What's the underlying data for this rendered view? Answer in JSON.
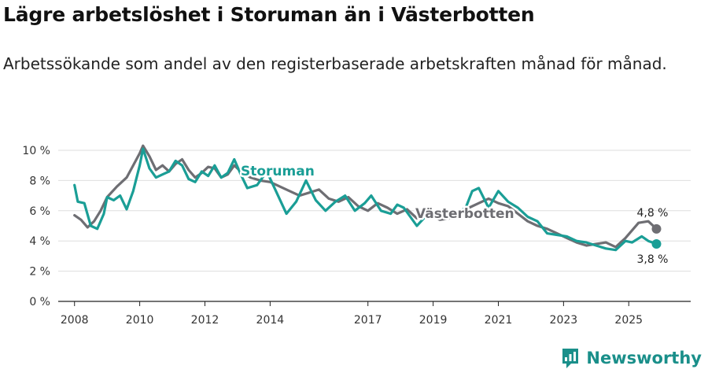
{
  "header": {
    "title": "Lägre arbetslöshet i Storuman än i Västerbotten",
    "subtitle": "Arbetssökande som andel av den registerbaserade arbetskraften månad för månad."
  },
  "brand": {
    "name": "Newsworthy",
    "color": "#1a8f8a"
  },
  "chart_data": {
    "type": "line",
    "title": "Lägre arbetslöshet i Storuman än i Västerbotten",
    "xlabel": "",
    "ylabel": "",
    "xlim": [
      2007.5,
      2026.9
    ],
    "ylim": [
      0,
      10
    ],
    "yticks": [
      0,
      2,
      4,
      6,
      8,
      10
    ],
    "ytick_labels": [
      "0 %",
      "2 %",
      "4 %",
      "6 %",
      "8 %",
      "10 %"
    ],
    "xticks": [
      2008,
      2010,
      2012,
      2014,
      2017,
      2019,
      2021,
      2023,
      2025
    ],
    "xtick_labels": [
      "2008",
      "2010",
      "2012",
      "2014",
      "2017",
      "2019",
      "2021",
      "2023",
      "2025"
    ],
    "grid": true,
    "series": [
      {
        "name": "Västerbotten",
        "color": "#6e6e73",
        "points": [
          [
            2008.0,
            5.7
          ],
          [
            2008.2,
            5.4
          ],
          [
            2008.4,
            4.9
          ],
          [
            2008.6,
            5.3
          ],
          [
            2008.8,
            6.0
          ],
          [
            2009.0,
            6.9
          ],
          [
            2009.3,
            7.6
          ],
          [
            2009.6,
            8.2
          ],
          [
            2009.8,
            9.0
          ],
          [
            2010.0,
            9.8
          ],
          [
            2010.1,
            10.3
          ],
          [
            2010.3,
            9.6
          ],
          [
            2010.5,
            8.7
          ],
          [
            2010.7,
            9.0
          ],
          [
            2010.9,
            8.6
          ],
          [
            2011.1,
            9.1
          ],
          [
            2011.3,
            9.4
          ],
          [
            2011.5,
            8.7
          ],
          [
            2011.7,
            8.2
          ],
          [
            2011.9,
            8.5
          ],
          [
            2012.1,
            8.9
          ],
          [
            2012.3,
            8.8
          ],
          [
            2012.5,
            8.2
          ],
          [
            2012.7,
            8.4
          ],
          [
            2012.9,
            9.0
          ],
          [
            2013.1,
            8.6
          ],
          [
            2013.4,
            8.2
          ],
          [
            2013.7,
            8.0
          ],
          [
            2014.0,
            7.9
          ],
          [
            2014.3,
            7.6
          ],
          [
            2014.6,
            7.3
          ],
          [
            2014.9,
            7.0
          ],
          [
            2015.2,
            7.2
          ],
          [
            2015.5,
            7.4
          ],
          [
            2015.8,
            6.8
          ],
          [
            2016.1,
            6.6
          ],
          [
            2016.4,
            6.9
          ],
          [
            2016.7,
            6.3
          ],
          [
            2017.0,
            6.0
          ],
          [
            2017.3,
            6.5
          ],
          [
            2017.6,
            6.2
          ],
          [
            2017.9,
            5.8
          ],
          [
            2018.2,
            6.1
          ],
          [
            2018.5,
            5.5
          ],
          [
            2018.8,
            5.9
          ],
          [
            2019.2,
            5.4
          ],
          [
            2019.5,
            5.5
          ],
          [
            2019.8,
            5.9
          ],
          [
            2020.1,
            6.2
          ],
          [
            2020.4,
            6.5
          ],
          [
            2020.7,
            6.8
          ],
          [
            2021.0,
            6.5
          ],
          [
            2021.3,
            6.3
          ],
          [
            2021.6,
            5.8
          ],
          [
            2021.9,
            5.3
          ],
          [
            2022.2,
            5.0
          ],
          [
            2022.5,
            4.8
          ],
          [
            2022.8,
            4.5
          ],
          [
            2023.1,
            4.2
          ],
          [
            2023.4,
            3.9
          ],
          [
            2023.7,
            3.7
          ],
          [
            2024.0,
            3.8
          ],
          [
            2024.3,
            3.9
          ],
          [
            2024.6,
            3.6
          ],
          [
            2024.9,
            4.2
          ],
          [
            2025.1,
            4.7
          ],
          [
            2025.3,
            5.2
          ],
          [
            2025.6,
            5.3
          ],
          [
            2025.85,
            4.8
          ]
        ],
        "end_label": "4,8 %"
      },
      {
        "name": "Storuman",
        "color": "#1a9e96",
        "points": [
          [
            2008.0,
            7.7
          ],
          [
            2008.1,
            6.6
          ],
          [
            2008.3,
            6.5
          ],
          [
            2008.5,
            5.0
          ],
          [
            2008.7,
            4.8
          ],
          [
            2008.9,
            5.8
          ],
          [
            2009.0,
            6.9
          ],
          [
            2009.2,
            6.7
          ],
          [
            2009.4,
            7.0
          ],
          [
            2009.6,
            6.1
          ],
          [
            2009.8,
            7.3
          ],
          [
            2010.0,
            9.0
          ],
          [
            2010.1,
            10.1
          ],
          [
            2010.3,
            8.8
          ],
          [
            2010.5,
            8.2
          ],
          [
            2010.7,
            8.4
          ],
          [
            2010.9,
            8.6
          ],
          [
            2011.1,
            9.3
          ],
          [
            2011.3,
            9.0
          ],
          [
            2011.5,
            8.1
          ],
          [
            2011.7,
            7.9
          ],
          [
            2011.9,
            8.6
          ],
          [
            2012.1,
            8.3
          ],
          [
            2012.3,
            9.0
          ],
          [
            2012.5,
            8.2
          ],
          [
            2012.7,
            8.5
          ],
          [
            2012.9,
            9.4
          ],
          [
            2013.1,
            8.4
          ],
          [
            2013.3,
            7.5
          ],
          [
            2013.6,
            7.7
          ],
          [
            2013.9,
            8.6
          ],
          [
            2014.2,
            7.2
          ],
          [
            2014.5,
            5.8
          ],
          [
            2014.8,
            6.6
          ],
          [
            2015.1,
            8.0
          ],
          [
            2015.4,
            6.7
          ],
          [
            2015.7,
            6.0
          ],
          [
            2016.0,
            6.6
          ],
          [
            2016.3,
            7.0
          ],
          [
            2016.6,
            6.0
          ],
          [
            2016.9,
            6.5
          ],
          [
            2017.1,
            7.0
          ],
          [
            2017.4,
            6.0
          ],
          [
            2017.7,
            5.8
          ],
          [
            2017.9,
            6.4
          ],
          [
            2018.1,
            6.2
          ],
          [
            2018.3,
            5.6
          ],
          [
            2018.5,
            5.0
          ],
          [
            2018.8,
            5.7
          ],
          [
            2019.1,
            5.5
          ],
          [
            2019.4,
            6.0
          ],
          [
            2019.7,
            5.8
          ],
          [
            2020.0,
            6.2
          ],
          [
            2020.2,
            7.3
          ],
          [
            2020.4,
            7.5
          ],
          [
            2020.7,
            6.2
          ],
          [
            2021.0,
            7.3
          ],
          [
            2021.3,
            6.6
          ],
          [
            2021.6,
            6.2
          ],
          [
            2021.9,
            5.6
          ],
          [
            2022.2,
            5.3
          ],
          [
            2022.5,
            4.5
          ],
          [
            2022.8,
            4.4
          ],
          [
            2023.1,
            4.3
          ],
          [
            2023.4,
            4.0
          ],
          [
            2023.7,
            3.9
          ],
          [
            2024.0,
            3.7
          ],
          [
            2024.3,
            3.5
          ],
          [
            2024.6,
            3.4
          ],
          [
            2024.9,
            4.0
          ],
          [
            2025.1,
            3.9
          ],
          [
            2025.4,
            4.3
          ],
          [
            2025.6,
            4.0
          ],
          [
            2025.85,
            3.8
          ]
        ],
        "end_label": "3,8 %"
      }
    ]
  }
}
